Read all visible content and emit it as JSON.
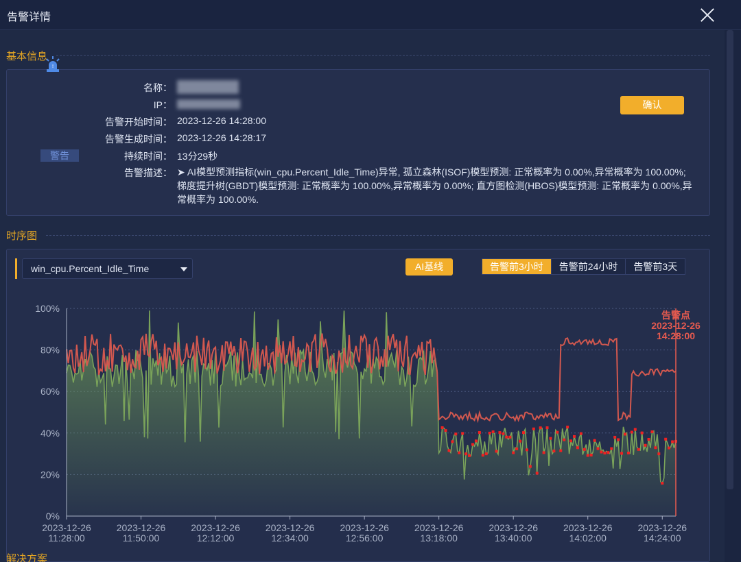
{
  "dialog": {
    "title": "告警详情"
  },
  "sections": {
    "basic": "基本信息",
    "timeseries": "时序图",
    "solution": "解决方案"
  },
  "alarm": {
    "level": "警告",
    "fields": [
      {
        "label": "名称：",
        "value": ""
      },
      {
        "label": "IP：",
        "value": ""
      },
      {
        "label": "告警开始时间：",
        "value": "2023-12-26 14:28:00"
      },
      {
        "label": "告警生成时间：",
        "value": "2023-12-26 14:28:17"
      },
      {
        "label": "持续时间：",
        "value": "13分29秒"
      }
    ],
    "description_label": "告警描述：",
    "description": "➤ AI模型预测指标(win_cpu.Percent_Idle_Time)异常, 孤立森林(ISOF)模型预测: 正常概率为 0.00%,异常概率为 100.00%; 梯度提升树(GBDT)模型预测: 正常概率为 100.00%,异常概率为 0.00%; 直方图检测(HBOS)模型预测: 正常概率为 0.00%,异常概率为 100.00%.",
    "confirm_label": "确认"
  },
  "toolbar": {
    "metric": "win_cpu.Percent_Idle_Time",
    "ai_baseline_label": "AI基线",
    "ranges": [
      "告警前3小时",
      "告警前24小时",
      "告警前3天"
    ],
    "active_range": 0
  },
  "chart_data": {
    "type": "line",
    "y_ticks": [
      "0%",
      "20%",
      "40%",
      "60%",
      "80%",
      "100%"
    ],
    "ylim": [
      0,
      100
    ],
    "x_ticks": [
      [
        "2023-12-26",
        "11:28:00"
      ],
      [
        "2023-12-26",
        "11:50:00"
      ],
      [
        "2023-12-26",
        "12:12:00"
      ],
      [
        "2023-12-26",
        "12:34:00"
      ],
      [
        "2023-12-26",
        "12:56:00"
      ],
      [
        "2023-12-26",
        "13:18:00"
      ],
      [
        "2023-12-26",
        "13:40:00"
      ],
      [
        "2023-12-26",
        "14:02:00"
      ],
      [
        "2023-12-26",
        "14:24:00"
      ]
    ],
    "x_start_minute": 0,
    "x_end_minute": 180,
    "marker": {
      "lines": [
        "告警点",
        "2023-12-26",
        "14:28:00"
      ],
      "minute": 180
    },
    "colors": {
      "actual": "#7aa35a",
      "baseline": "#d2584f",
      "anomaly": "#ee2222",
      "marker": "#e65a4f",
      "grid": "#4c5a82",
      "axis": "#a9b2c6"
    },
    "series": [
      {
        "key": "actual",
        "segments": [
          {
            "from": 0,
            "to": 110,
            "level": 71,
            "amp": 9,
            "dips": 0.07,
            "dipMin": 35
          },
          {
            "from": 110,
            "to": 180,
            "level": 36,
            "amp": 7,
            "dips": 0.06,
            "dipMin": 15
          }
        ]
      },
      {
        "key": "baseline",
        "segments": [
          {
            "from": 0,
            "to": 110,
            "level": 78,
            "amp": 10
          },
          {
            "from": 110,
            "to": 146,
            "level": 48,
            "amp": 2
          },
          {
            "from": 146,
            "to": 163,
            "level": 84,
            "amp": 2
          },
          {
            "from": 163,
            "to": 167,
            "level": 48,
            "amp": 2
          },
          {
            "from": 167,
            "to": 180,
            "level": 69,
            "amp": 2
          }
        ]
      }
    ],
    "anomaly_from_minute": 111
  }
}
